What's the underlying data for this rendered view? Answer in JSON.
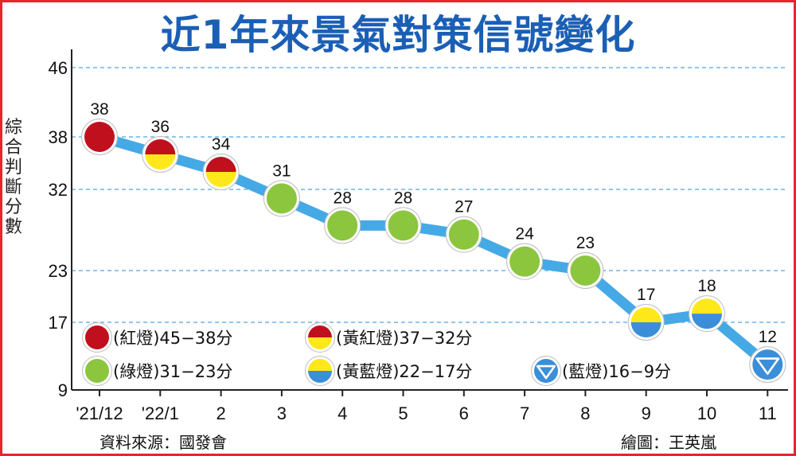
{
  "title": "近1年來景氣對策信號變化",
  "source": "資料來源：國發會",
  "credit": "繪圖：王英嵐",
  "colors": {
    "red": "#c0101e",
    "yellow": "#ffe81a",
    "green": "#8cc63f",
    "blue": "#3a8fd8",
    "line": "#45a9e6",
    "title": "#1b5fb5",
    "frame": "#e8242c"
  },
  "chart_data": {
    "type": "line",
    "title": "近1年來景氣對策信號變化",
    "ylabel": "綜合判斷分數",
    "xlabel": "",
    "categories": [
      "'21/12",
      "'22/1",
      "2",
      "3",
      "4",
      "5",
      "6",
      "7",
      "8",
      "9",
      "10",
      "11"
    ],
    "values": [
      38,
      36,
      34,
      31,
      28,
      28,
      27,
      24,
      23,
      17,
      18,
      12
    ],
    "signals": [
      "red",
      "yellow-red",
      "yellow-red",
      "green",
      "green",
      "green",
      "green",
      "green",
      "green",
      "yellow-blue",
      "yellow-blue",
      "blue"
    ],
    "yticks": [
      46,
      38,
      32,
      23,
      17,
      9
    ],
    "ylim": [
      9,
      46
    ],
    "grid": true,
    "legend": [
      {
        "signal": "red",
        "label": "(紅燈)45−38分"
      },
      {
        "signal": "yellow-red",
        "label": "(黃紅燈)37−32分"
      },
      {
        "signal": "green",
        "label": "(綠燈)31−23分"
      },
      {
        "signal": "yellow-blue",
        "label": "(黃藍燈)22−17分"
      },
      {
        "signal": "blue",
        "label": "(藍燈)16−9分"
      }
    ]
  }
}
